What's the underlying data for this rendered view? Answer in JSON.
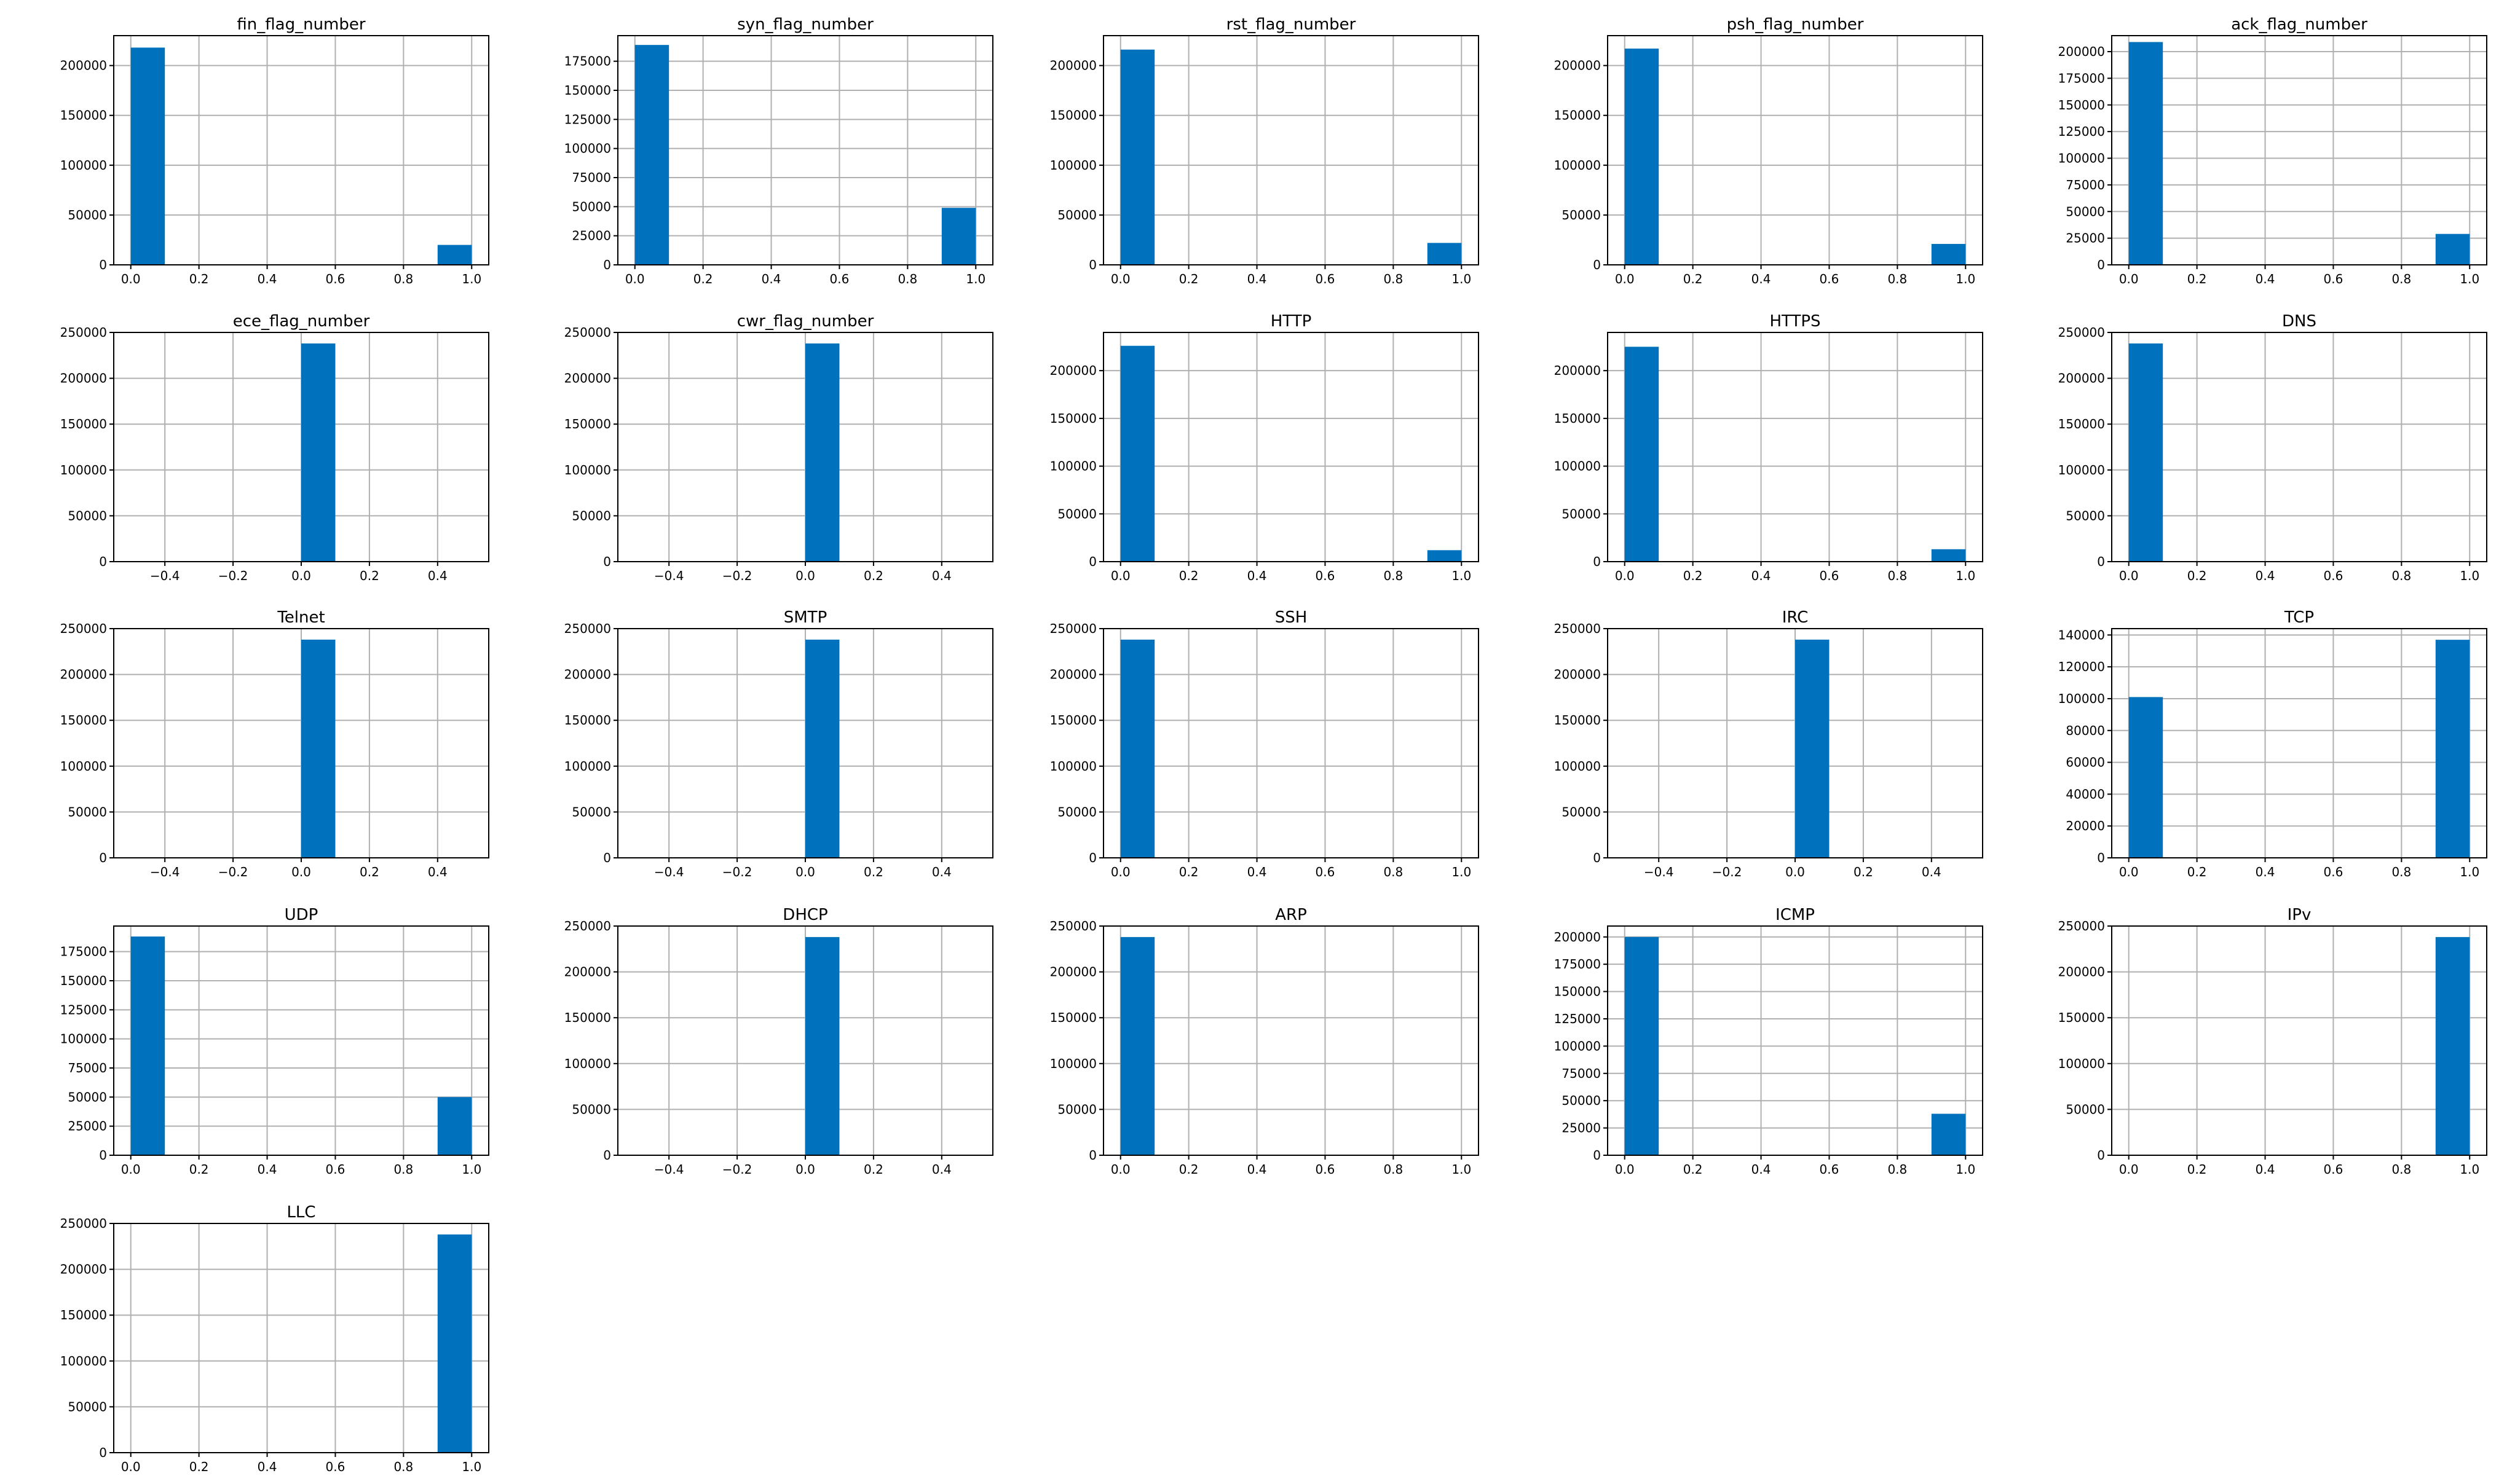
{
  "figure": {
    "background": "#ffffff",
    "bar_color": "#0072bd",
    "grid_color": "#b0b0b0"
  },
  "chart_data": [
    {
      "type": "bar",
      "title": "fin_flag_number",
      "xlabel": "",
      "ylabel": "",
      "xlim": [
        -0.05,
        1.05
      ],
      "ylim": [
        0,
        230000
      ],
      "grid": true,
      "xticks": [
        0.0,
        0.2,
        0.4,
        0.6,
        0.8,
        1.0
      ],
      "xtick_labels": [
        "0.0",
        "0.2",
        "0.4",
        "0.6",
        "0.8",
        "1.0"
      ],
      "yticks": [
        0,
        50000,
        100000,
        150000,
        200000
      ],
      "ytick_labels": [
        "0",
        "50000",
        "100000",
        "150000",
        "200000"
      ],
      "bars": [
        {
          "x0": 0.0,
          "x1": 0.1,
          "value": 218000
        },
        {
          "x0": 0.9,
          "x1": 1.0,
          "value": 20000
        }
      ]
    },
    {
      "type": "bar",
      "title": "syn_flag_number",
      "xlabel": "",
      "ylabel": "",
      "xlim": [
        -0.05,
        1.05
      ],
      "ylim": [
        0,
        197000
      ],
      "grid": true,
      "xticks": [
        0.0,
        0.2,
        0.4,
        0.6,
        0.8,
        1.0
      ],
      "xtick_labels": [
        "0.0",
        "0.2",
        "0.4",
        "0.6",
        "0.8",
        "1.0"
      ],
      "yticks": [
        0,
        25000,
        50000,
        75000,
        100000,
        125000,
        150000,
        175000
      ],
      "ytick_labels": [
        "0",
        "25000",
        "50000",
        "75000",
        "100000",
        "125000",
        "150000",
        "175000"
      ],
      "bars": [
        {
          "x0": 0.0,
          "x1": 0.1,
          "value": 189000
        },
        {
          "x0": 0.9,
          "x1": 1.0,
          "value": 49000
        }
      ]
    },
    {
      "type": "bar",
      "title": "rst_flag_number",
      "xlabel": "",
      "ylabel": "",
      "xlim": [
        -0.05,
        1.05
      ],
      "ylim": [
        0,
        230000
      ],
      "grid": true,
      "xticks": [
        0.0,
        0.2,
        0.4,
        0.6,
        0.8,
        1.0
      ],
      "xtick_labels": [
        "0.0",
        "0.2",
        "0.4",
        "0.6",
        "0.8",
        "1.0"
      ],
      "yticks": [
        0,
        50000,
        100000,
        150000,
        200000
      ],
      "ytick_labels": [
        "0",
        "50000",
        "100000",
        "150000",
        "200000"
      ],
      "bars": [
        {
          "x0": 0.0,
          "x1": 0.1,
          "value": 216000
        },
        {
          "x0": 0.9,
          "x1": 1.0,
          "value": 22000
        }
      ]
    },
    {
      "type": "bar",
      "title": "psh_flag_number",
      "xlabel": "",
      "ylabel": "",
      "xlim": [
        -0.05,
        1.05
      ],
      "ylim": [
        0,
        230000
      ],
      "grid": true,
      "xticks": [
        0.0,
        0.2,
        0.4,
        0.6,
        0.8,
        1.0
      ],
      "xtick_labels": [
        "0.0",
        "0.2",
        "0.4",
        "0.6",
        "0.8",
        "1.0"
      ],
      "yticks": [
        0,
        50000,
        100000,
        150000,
        200000
      ],
      "ytick_labels": [
        "0",
        "50000",
        "100000",
        "150000",
        "200000"
      ],
      "bars": [
        {
          "x0": 0.0,
          "x1": 0.1,
          "value": 217000
        },
        {
          "x0": 0.9,
          "x1": 1.0,
          "value": 21000
        }
      ]
    },
    {
      "type": "bar",
      "title": "ack_flag_number",
      "xlabel": "",
      "ylabel": "",
      "xlim": [
        -0.05,
        1.05
      ],
      "ylim": [
        0,
        215000
      ],
      "grid": true,
      "xticks": [
        0.0,
        0.2,
        0.4,
        0.6,
        0.8,
        1.0
      ],
      "xtick_labels": [
        "0.0",
        "0.2",
        "0.4",
        "0.6",
        "0.8",
        "1.0"
      ],
      "yticks": [
        0,
        25000,
        50000,
        75000,
        100000,
        125000,
        150000,
        175000,
        200000
      ],
      "ytick_labels": [
        "0",
        "25000",
        "50000",
        "75000",
        "100000",
        "125000",
        "150000",
        "175000",
        "200000"
      ],
      "bars": [
        {
          "x0": 0.0,
          "x1": 0.1,
          "value": 209000
        },
        {
          "x0": 0.9,
          "x1": 1.0,
          "value": 29000
        }
      ]
    },
    {
      "type": "bar",
      "title": "ece_flag_number",
      "xlabel": "",
      "ylabel": "",
      "xlim": [
        -0.55,
        0.55
      ],
      "ylim": [
        0,
        250000
      ],
      "grid": true,
      "xticks": [
        -0.4,
        -0.2,
        0.0,
        0.2,
        0.4
      ],
      "xtick_labels": [
        "−0.4",
        "−0.2",
        "0.0",
        "0.2",
        "0.4"
      ],
      "yticks": [
        0,
        50000,
        100000,
        150000,
        200000,
        250000
      ],
      "ytick_labels": [
        "0",
        "50000",
        "100000",
        "150000",
        "200000",
        "250000"
      ],
      "bars": [
        {
          "x0": 0.0,
          "x1": 0.1,
          "value": 238000
        }
      ]
    },
    {
      "type": "bar",
      "title": "cwr_flag_number",
      "xlabel": "",
      "ylabel": "",
      "xlim": [
        -0.55,
        0.55
      ],
      "ylim": [
        0,
        250000
      ],
      "grid": true,
      "xticks": [
        -0.4,
        -0.2,
        0.0,
        0.2,
        0.4
      ],
      "xtick_labels": [
        "−0.4",
        "−0.2",
        "0.0",
        "0.2",
        "0.4"
      ],
      "yticks": [
        0,
        50000,
        100000,
        150000,
        200000,
        250000
      ],
      "ytick_labels": [
        "0",
        "50000",
        "100000",
        "150000",
        "200000",
        "250000"
      ],
      "bars": [
        {
          "x0": 0.0,
          "x1": 0.1,
          "value": 238000
        }
      ]
    },
    {
      "type": "bar",
      "title": "HTTP",
      "xlabel": "",
      "ylabel": "",
      "xlim": [
        -0.05,
        1.05
      ],
      "ylim": [
        0,
        240000
      ],
      "grid": true,
      "xticks": [
        0.0,
        0.2,
        0.4,
        0.6,
        0.8,
        1.0
      ],
      "xtick_labels": [
        "0.0",
        "0.2",
        "0.4",
        "0.6",
        "0.8",
        "1.0"
      ],
      "yticks": [
        0,
        50000,
        100000,
        150000,
        200000
      ],
      "ytick_labels": [
        "0",
        "50000",
        "100000",
        "150000",
        "200000"
      ],
      "bars": [
        {
          "x0": 0.0,
          "x1": 0.1,
          "value": 226000
        },
        {
          "x0": 0.9,
          "x1": 1.0,
          "value": 12000
        }
      ]
    },
    {
      "type": "bar",
      "title": "HTTPS",
      "xlabel": "",
      "ylabel": "",
      "xlim": [
        -0.05,
        1.05
      ],
      "ylim": [
        0,
        240000
      ],
      "grid": true,
      "xticks": [
        0.0,
        0.2,
        0.4,
        0.6,
        0.8,
        1.0
      ],
      "xtick_labels": [
        "0.0",
        "0.2",
        "0.4",
        "0.6",
        "0.8",
        "1.0"
      ],
      "yticks": [
        0,
        50000,
        100000,
        150000,
        200000
      ],
      "ytick_labels": [
        "0",
        "50000",
        "100000",
        "150000",
        "200000"
      ],
      "bars": [
        {
          "x0": 0.0,
          "x1": 0.1,
          "value": 225000
        },
        {
          "x0": 0.9,
          "x1": 1.0,
          "value": 13000
        }
      ]
    },
    {
      "type": "bar",
      "title": "DNS",
      "xlabel": "",
      "ylabel": "",
      "xlim": [
        -0.05,
        1.05
      ],
      "ylim": [
        0,
        250000
      ],
      "grid": true,
      "xticks": [
        0.0,
        0.2,
        0.4,
        0.6,
        0.8,
        1.0
      ],
      "xtick_labels": [
        "0.0",
        "0.2",
        "0.4",
        "0.6",
        "0.8",
        "1.0"
      ],
      "yticks": [
        0,
        50000,
        100000,
        150000,
        200000,
        250000
      ],
      "ytick_labels": [
        "0",
        "50000",
        "100000",
        "150000",
        "200000",
        "250000"
      ],
      "bars": [
        {
          "x0": 0.0,
          "x1": 0.1,
          "value": 238000
        }
      ]
    },
    {
      "type": "bar",
      "title": "Telnet",
      "xlabel": "",
      "ylabel": "",
      "xlim": [
        -0.55,
        0.55
      ],
      "ylim": [
        0,
        250000
      ],
      "grid": true,
      "xticks": [
        -0.4,
        -0.2,
        0.0,
        0.2,
        0.4
      ],
      "xtick_labels": [
        "−0.4",
        "−0.2",
        "0.0",
        "0.2",
        "0.4"
      ],
      "yticks": [
        0,
        50000,
        100000,
        150000,
        200000,
        250000
      ],
      "ytick_labels": [
        "0",
        "50000",
        "100000",
        "150000",
        "200000",
        "250000"
      ],
      "bars": [
        {
          "x0": 0.0,
          "x1": 0.1,
          "value": 238000
        }
      ]
    },
    {
      "type": "bar",
      "title": "SMTP",
      "xlabel": "",
      "ylabel": "",
      "xlim": [
        -0.55,
        0.55
      ],
      "ylim": [
        0,
        250000
      ],
      "grid": true,
      "xticks": [
        -0.4,
        -0.2,
        0.0,
        0.2,
        0.4
      ],
      "xtick_labels": [
        "−0.4",
        "−0.2",
        "0.0",
        "0.2",
        "0.4"
      ],
      "yticks": [
        0,
        50000,
        100000,
        150000,
        200000,
        250000
      ],
      "ytick_labels": [
        "0",
        "50000",
        "100000",
        "150000",
        "200000",
        "250000"
      ],
      "bars": [
        {
          "x0": 0.0,
          "x1": 0.1,
          "value": 238000
        }
      ]
    },
    {
      "type": "bar",
      "title": "SSH",
      "xlabel": "",
      "ylabel": "",
      "xlim": [
        -0.05,
        1.05
      ],
      "ylim": [
        0,
        250000
      ],
      "grid": true,
      "xticks": [
        0.0,
        0.2,
        0.4,
        0.6,
        0.8,
        1.0
      ],
      "xtick_labels": [
        "0.0",
        "0.2",
        "0.4",
        "0.6",
        "0.8",
        "1.0"
      ],
      "yticks": [
        0,
        50000,
        100000,
        150000,
        200000,
        250000
      ],
      "ytick_labels": [
        "0",
        "50000",
        "100000",
        "150000",
        "200000",
        "250000"
      ],
      "bars": [
        {
          "x0": 0.0,
          "x1": 0.1,
          "value": 238000
        }
      ]
    },
    {
      "type": "bar",
      "title": "IRC",
      "xlabel": "",
      "ylabel": "",
      "xlim": [
        -0.55,
        0.55
      ],
      "ylim": [
        0,
        250000
      ],
      "grid": true,
      "xticks": [
        -0.4,
        -0.2,
        0.0,
        0.2,
        0.4
      ],
      "xtick_labels": [
        "−0.4",
        "−0.2",
        "0.0",
        "0.2",
        "0.4"
      ],
      "yticks": [
        0,
        50000,
        100000,
        150000,
        200000,
        250000
      ],
      "ytick_labels": [
        "0",
        "50000",
        "100000",
        "150000",
        "200000",
        "250000"
      ],
      "bars": [
        {
          "x0": 0.0,
          "x1": 0.1,
          "value": 238000
        }
      ]
    },
    {
      "type": "bar",
      "title": "TCP",
      "xlabel": "",
      "ylabel": "",
      "xlim": [
        -0.05,
        1.05
      ],
      "ylim": [
        0,
        144000
      ],
      "grid": true,
      "xticks": [
        0.0,
        0.2,
        0.4,
        0.6,
        0.8,
        1.0
      ],
      "xtick_labels": [
        "0.0",
        "0.2",
        "0.4",
        "0.6",
        "0.8",
        "1.0"
      ],
      "yticks": [
        0,
        20000,
        40000,
        60000,
        80000,
        100000,
        120000,
        140000
      ],
      "ytick_labels": [
        "0",
        "20000",
        "40000",
        "60000",
        "80000",
        "100000",
        "120000",
        "140000"
      ],
      "bars": [
        {
          "x0": 0.0,
          "x1": 0.1,
          "value": 101000
        },
        {
          "x0": 0.9,
          "x1": 1.0,
          "value": 137000
        }
      ]
    },
    {
      "type": "bar",
      "title": "UDP",
      "xlabel": "",
      "ylabel": "",
      "xlim": [
        -0.05,
        1.05
      ],
      "ylim": [
        0,
        197000
      ],
      "grid": true,
      "xticks": [
        0.0,
        0.2,
        0.4,
        0.6,
        0.8,
        1.0
      ],
      "xtick_labels": [
        "0.0",
        "0.2",
        "0.4",
        "0.6",
        "0.8",
        "1.0"
      ],
      "yticks": [
        0,
        25000,
        50000,
        75000,
        100000,
        125000,
        150000,
        175000
      ],
      "ytick_labels": [
        "0",
        "25000",
        "50000",
        "75000",
        "100000",
        "125000",
        "150000",
        "175000"
      ],
      "bars": [
        {
          "x0": 0.0,
          "x1": 0.1,
          "value": 188000
        },
        {
          "x0": 0.9,
          "x1": 1.0,
          "value": 50000
        }
      ]
    },
    {
      "type": "bar",
      "title": "DHCP",
      "xlabel": "",
      "ylabel": "",
      "xlim": [
        -0.55,
        0.55
      ],
      "ylim": [
        0,
        250000
      ],
      "grid": true,
      "xticks": [
        -0.4,
        -0.2,
        0.0,
        0.2,
        0.4
      ],
      "xtick_labels": [
        "−0.4",
        "−0.2",
        "0.0",
        "0.2",
        "0.4"
      ],
      "yticks": [
        0,
        50000,
        100000,
        150000,
        200000,
        250000
      ],
      "ytick_labels": [
        "0",
        "50000",
        "100000",
        "150000",
        "200000",
        "250000"
      ],
      "bars": [
        {
          "x0": 0.0,
          "x1": 0.1,
          "value": 238000
        }
      ]
    },
    {
      "type": "bar",
      "title": "ARP",
      "xlabel": "",
      "ylabel": "",
      "xlim": [
        -0.05,
        1.05
      ],
      "ylim": [
        0,
        250000
      ],
      "grid": true,
      "xticks": [
        0.0,
        0.2,
        0.4,
        0.6,
        0.8,
        1.0
      ],
      "xtick_labels": [
        "0.0",
        "0.2",
        "0.4",
        "0.6",
        "0.8",
        "1.0"
      ],
      "yticks": [
        0,
        50000,
        100000,
        150000,
        200000,
        250000
      ],
      "ytick_labels": [
        "0",
        "50000",
        "100000",
        "150000",
        "200000",
        "250000"
      ],
      "bars": [
        {
          "x0": 0.0,
          "x1": 0.1,
          "value": 238000
        }
      ]
    },
    {
      "type": "bar",
      "title": "ICMP",
      "xlabel": "",
      "ylabel": "",
      "xlim": [
        -0.05,
        1.05
      ],
      "ylim": [
        0,
        210000
      ],
      "grid": true,
      "xticks": [
        0.0,
        0.2,
        0.4,
        0.6,
        0.8,
        1.0
      ],
      "xtick_labels": [
        "0.0",
        "0.2",
        "0.4",
        "0.6",
        "0.8",
        "1.0"
      ],
      "yticks": [
        0,
        25000,
        50000,
        75000,
        100000,
        125000,
        150000,
        175000,
        200000
      ],
      "ytick_labels": [
        "0",
        "25000",
        "50000",
        "75000",
        "100000",
        "125000",
        "150000",
        "175000",
        "200000"
      ],
      "bars": [
        {
          "x0": 0.0,
          "x1": 0.1,
          "value": 200000
        },
        {
          "x0": 0.9,
          "x1": 1.0,
          "value": 38000
        }
      ]
    },
    {
      "type": "bar",
      "title": "IPv",
      "xlabel": "",
      "ylabel": "",
      "xlim": [
        -0.05,
        1.05
      ],
      "ylim": [
        0,
        250000
      ],
      "grid": true,
      "xticks": [
        0.0,
        0.2,
        0.4,
        0.6,
        0.8,
        1.0
      ],
      "xtick_labels": [
        "0.0",
        "0.2",
        "0.4",
        "0.6",
        "0.8",
        "1.0"
      ],
      "yticks": [
        0,
        50000,
        100000,
        150000,
        200000,
        250000
      ],
      "ytick_labels": [
        "0",
        "50000",
        "100000",
        "150000",
        "200000",
        "250000"
      ],
      "bars": [
        {
          "x0": 0.9,
          "x1": 1.0,
          "value": 238000
        }
      ]
    },
    {
      "type": "bar",
      "title": "LLC",
      "xlabel": "",
      "ylabel": "",
      "xlim": [
        -0.05,
        1.05
      ],
      "ylim": [
        0,
        250000
      ],
      "grid": true,
      "xticks": [
        0.0,
        0.2,
        0.4,
        0.6,
        0.8,
        1.0
      ],
      "xtick_labels": [
        "0.0",
        "0.2",
        "0.4",
        "0.6",
        "0.8",
        "1.0"
      ],
      "yticks": [
        0,
        50000,
        100000,
        150000,
        200000,
        250000
      ],
      "ytick_labels": [
        "0",
        "50000",
        "100000",
        "150000",
        "200000",
        "250000"
      ],
      "bars": [
        {
          "x0": 0.9,
          "x1": 1.0,
          "value": 238000
        }
      ]
    }
  ]
}
